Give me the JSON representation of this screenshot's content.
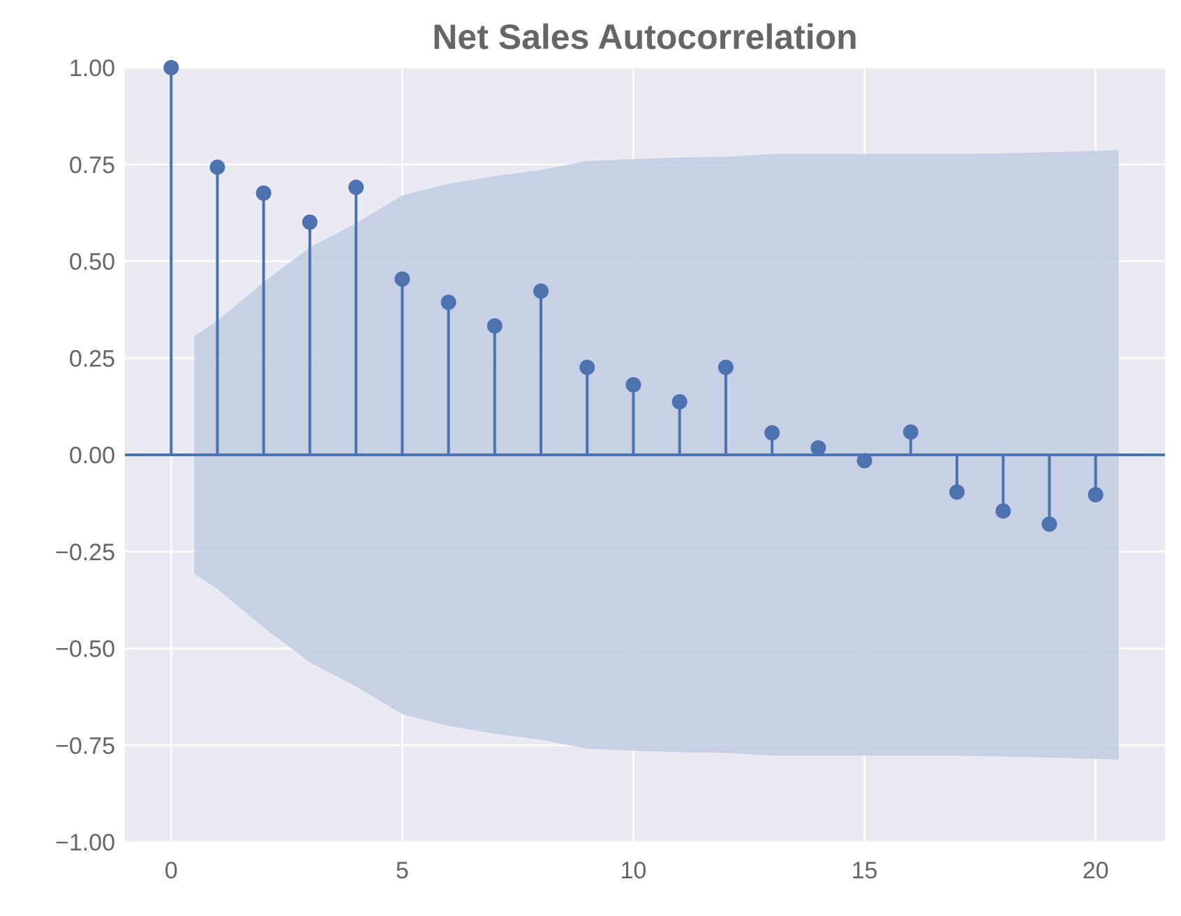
{
  "chart_data": {
    "type": "stem",
    "title": "Net Sales Autocorrelation",
    "xlabel": "",
    "ylabel": "",
    "xlim": [
      -1,
      21.5
    ],
    "ylim": [
      -1.0,
      1.0
    ],
    "grid": true,
    "legend": "none",
    "x_ticks": [
      0,
      5,
      10,
      15,
      20
    ],
    "x_tick_labels": [
      "0",
      "5",
      "10",
      "15",
      "20"
    ],
    "y_ticks": [
      1.0,
      0.75,
      0.5,
      0.25,
      0.0,
      -0.25,
      -0.5,
      -0.75,
      -1.0
    ],
    "y_tick_labels": [
      "1.00",
      "0.75",
      "0.50",
      "0.25",
      "0.00",
      "−0.25",
      "−0.50",
      "−0.75",
      "−1.00"
    ],
    "lags": [
      0,
      1,
      2,
      3,
      4,
      5,
      6,
      7,
      8,
      9,
      10,
      11,
      12,
      13,
      14,
      15,
      16,
      17,
      18,
      19,
      20
    ],
    "values": [
      1.0,
      0.743,
      0.676,
      0.601,
      0.691,
      0.454,
      0.394,
      0.333,
      0.423,
      0.226,
      0.181,
      0.137,
      0.226,
      0.057,
      0.018,
      -0.015,
      0.059,
      -0.096,
      -0.145,
      -0.179,
      -0.103
    ],
    "confidence_band": {
      "x": [
        0.5,
        1,
        2,
        3,
        4,
        5,
        6,
        7,
        8,
        9,
        10,
        11,
        12,
        13,
        14,
        15,
        16,
        17,
        18,
        19,
        20,
        20.5
      ],
      "upper": [
        0.307,
        0.346,
        0.446,
        0.536,
        0.598,
        0.67,
        0.7,
        0.72,
        0.736,
        0.759,
        0.764,
        0.768,
        0.77,
        0.777,
        0.777,
        0.777,
        0.777,
        0.777,
        0.779,
        0.782,
        0.785,
        0.787
      ]
    },
    "colors": {
      "stem": "#4c72b0",
      "band": "#c2cbe3",
      "background": "#eaeaf2",
      "grid": "#ffffff",
      "text": "#666666"
    }
  }
}
